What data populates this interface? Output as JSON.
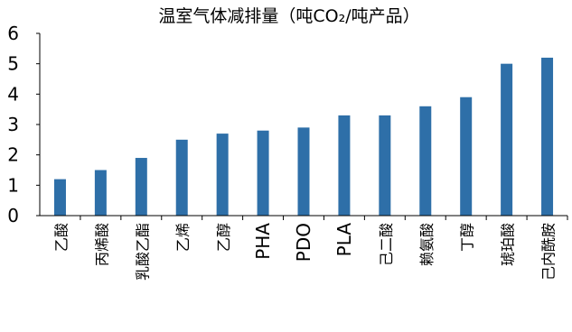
{
  "chart_data": {
    "type": "bar",
    "title": "温室气体减排量（吨CO₂/吨产品）",
    "xlabel": "",
    "ylabel": "",
    "ylim": [
      0,
      6
    ],
    "yticks": [
      "0",
      "1",
      "2",
      "3",
      "4",
      "5",
      "6"
    ],
    "grid": false,
    "legend": "none",
    "bar_color": "#2e6fa8",
    "categories": [
      "乙酸",
      "丙烯酸",
      "乳酸乙酯",
      "乙烯",
      "乙醇",
      "PHA",
      "PDO",
      "PLA",
      "己二酸",
      "赖氨酸",
      "丁醇",
      "琥珀酸",
      "己内酰胺"
    ],
    "values": [
      1.2,
      1.5,
      1.9,
      2.5,
      2.7,
      2.8,
      2.9,
      3.3,
      3.3,
      3.6,
      3.9,
      5.0,
      5.2
    ]
  }
}
